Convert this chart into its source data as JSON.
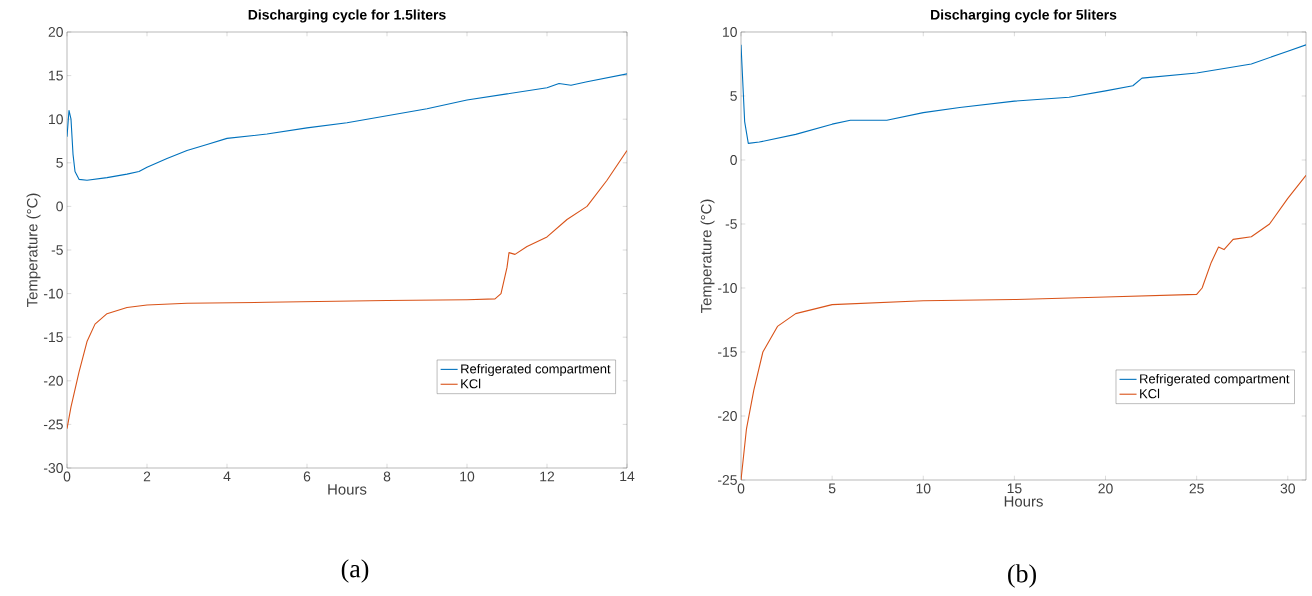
{
  "chart_data": [
    {
      "type": "line",
      "title": "Discharging cycle for 1.5liters",
      "xlabel": "Hours",
      "ylabel": "Temperature (°C)",
      "xlim": [
        0,
        14
      ],
      "ylim": [
        -30,
        20
      ],
      "xticks": [
        0,
        2,
        4,
        6,
        8,
        10,
        12,
        14
      ],
      "yticks": [
        -30,
        -25,
        -20,
        -15,
        -10,
        -5,
        0,
        5,
        10,
        15,
        20
      ],
      "legend": "bottom right",
      "grid": false,
      "annotations": [
        "(a)"
      ],
      "series": [
        {
          "name": "Refrigerated compartment",
          "color": "#0072bd",
          "x": [
            0,
            0.05,
            0.1,
            0.15,
            0.2,
            0.3,
            0.5,
            1,
            1.5,
            1.8,
            2,
            2.5,
            3,
            3.5,
            4,
            5,
            6,
            7,
            8,
            9,
            10,
            11,
            12,
            12.3,
            12.6,
            13,
            14
          ],
          "values": [
            8,
            11,
            10,
            6,
            4,
            3.1,
            3,
            3.3,
            3.7,
            4,
            4.5,
            5.5,
            6.4,
            7.1,
            7.8,
            8.3,
            9,
            9.6,
            10.4,
            11.2,
            12.2,
            12.9,
            13.6,
            14.1,
            13.9,
            14.3,
            15.2
          ]
        },
        {
          "name": "KCl",
          "color": "#d95319",
          "x": [
            0,
            0.1,
            0.3,
            0.5,
            0.7,
            1,
            1.5,
            2,
            3,
            5,
            8,
            10,
            10.7,
            10.85,
            11,
            11.05,
            11.2,
            11.5,
            12,
            12.5,
            13,
            13.5,
            14
          ],
          "values": [
            -25.5,
            -23,
            -19,
            -15.5,
            -13.5,
            -12.3,
            -11.6,
            -11.3,
            -11.1,
            -11,
            -10.8,
            -10.7,
            -10.6,
            -10,
            -7,
            -5.3,
            -5.5,
            -4.6,
            -3.5,
            -1.5,
            0,
            3,
            6.4
          ]
        }
      ]
    },
    {
      "type": "line",
      "title": "Discharging cycle for 5liters",
      "xlabel": "Hours",
      "ylabel": "Temperature (°C)",
      "xlim": [
        0,
        31
      ],
      "ylim": [
        -25,
        10
      ],
      "xticks": [
        0,
        5,
        10,
        15,
        20,
        25,
        30
      ],
      "yticks": [
        -25,
        -20,
        -15,
        -10,
        -5,
        0,
        5,
        10
      ],
      "legend": "bottom right",
      "grid": false,
      "annotations": [
        "(b)"
      ],
      "series": [
        {
          "name": "Refrigerated compartment",
          "color": "#0072bd",
          "x": [
            0,
            0.2,
            0.4,
            1,
            3,
            5,
            6,
            8,
            10,
            12,
            15,
            18,
            20,
            21.5,
            22,
            25,
            28,
            30,
            31
          ],
          "values": [
            9,
            3,
            1.3,
            1.4,
            2,
            2.8,
            3.1,
            3.1,
            3.7,
            4.1,
            4.6,
            4.9,
            5.4,
            5.8,
            6.4,
            6.8,
            7.5,
            8.5,
            9
          ]
        },
        {
          "name": "KCl",
          "color": "#d95319",
          "x": [
            0,
            0.3,
            0.7,
            1.2,
            2,
            3,
            5,
            10,
            15,
            20,
            25,
            25.3,
            25.8,
            26.2,
            26.5,
            27,
            28,
            29,
            30,
            31
          ],
          "values": [
            -25,
            -21,
            -18,
            -15,
            -13,
            -12,
            -11.3,
            -11,
            -10.9,
            -10.7,
            -10.5,
            -10,
            -8,
            -6.8,
            -7,
            -6.2,
            -6,
            -5,
            -3,
            -1.2
          ]
        }
      ]
    }
  ]
}
